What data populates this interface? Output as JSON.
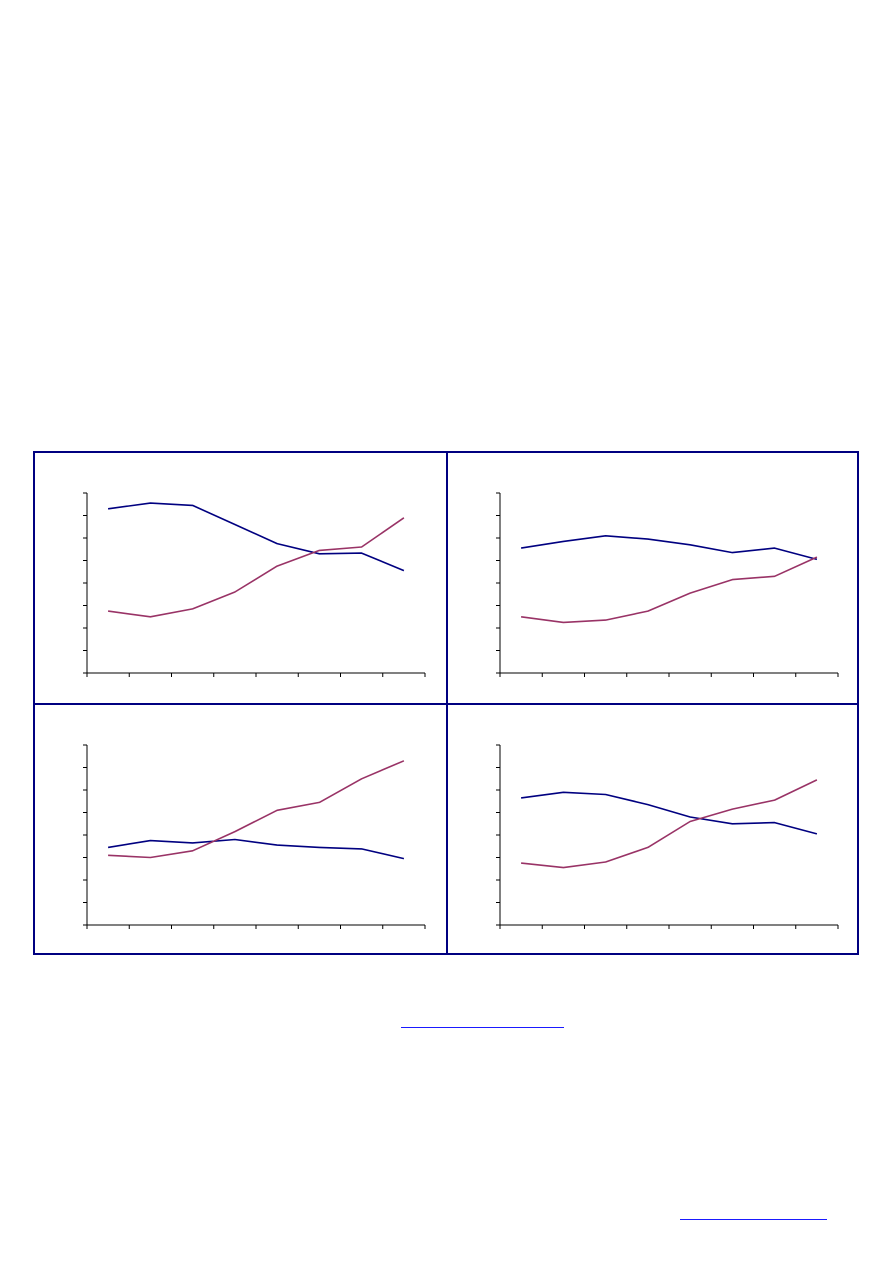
{
  "colors": {
    "frame": "#000080",
    "series_a": "#000080",
    "series_b": "#993366",
    "axis": "#000000",
    "link": "#1a1aff"
  },
  "chart_data": [
    {
      "type": "line",
      "x": [
        1,
        2,
        3,
        4,
        5,
        6,
        7,
        8
      ],
      "ylim": [
        0,
        8
      ],
      "yticks": 8,
      "grid": false,
      "series": [
        {
          "values": [
            7.3,
            7.55,
            7.45,
            6.6,
            5.75,
            5.3,
            5.33,
            4.55
          ]
        },
        {
          "values": [
            2.75,
            2.5,
            2.85,
            3.6,
            4.75,
            5.45,
            5.6,
            6.9
          ]
        }
      ]
    },
    {
      "type": "line",
      "x": [
        1,
        2,
        3,
        4,
        5,
        6,
        7,
        8
      ],
      "ylim": [
        0,
        8
      ],
      "yticks": 8,
      "grid": false,
      "series": [
        {
          "values": [
            5.55,
            5.85,
            6.1,
            5.95,
            5.7,
            5.35,
            5.55,
            5.05
          ]
        },
        {
          "values": [
            2.5,
            2.25,
            2.35,
            2.75,
            3.55,
            4.15,
            4.3,
            5.15
          ]
        }
      ]
    },
    {
      "type": "line",
      "x": [
        1,
        2,
        3,
        4,
        5,
        6,
        7,
        8
      ],
      "ylim": [
        0,
        8
      ],
      "yticks": 8,
      "grid": false,
      "series": [
        {
          "values": [
            3.45,
            3.75,
            3.65,
            3.8,
            3.55,
            3.45,
            3.38,
            2.95
          ]
        },
        {
          "values": [
            3.1,
            3.0,
            3.3,
            4.15,
            5.1,
            5.45,
            6.5,
            7.3
          ]
        }
      ]
    },
    {
      "type": "line",
      "x": [
        1,
        2,
        3,
        4,
        5,
        6,
        7,
        8
      ],
      "ylim": [
        0,
        8
      ],
      "yticks": 8,
      "grid": false,
      "series": [
        {
          "values": [
            5.65,
            5.9,
            5.8,
            5.35,
            4.8,
            4.5,
            4.55,
            4.05
          ]
        },
        {
          "values": [
            2.75,
            2.55,
            2.8,
            3.45,
            4.6,
            5.15,
            5.55,
            6.45
          ]
        }
      ]
    }
  ]
}
